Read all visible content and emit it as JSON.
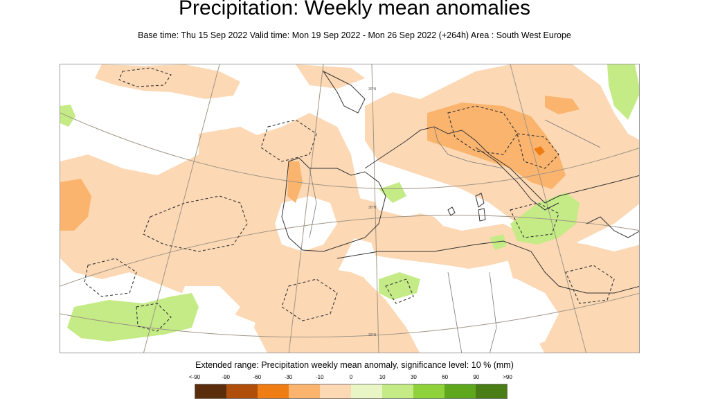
{
  "header": {
    "title": "Precipitation: Weekly mean anomalies",
    "subtitle": "Base time: Thu 15 Sep 2022 Valid time: Mon 19 Sep 2022 - Mon 26 Sep 2022 (+264h) Area : South West Europe"
  },
  "map": {
    "meridian_labels": [
      "30°N",
      "30°N",
      "30°N"
    ]
  },
  "legend": {
    "title": "Extended range: Precipitation weekly mean anomaly, significance level: 10 % (mm)",
    "labels": [
      "<-90",
      "-90",
      "-60",
      "-30",
      "-10",
      "0",
      "10",
      "30",
      "60",
      "90",
      ">90"
    ],
    "colors": [
      "#5a2d0c",
      "#b04e0c",
      "#f07d14",
      "#fab46e",
      "#fcd8b4",
      "#eaf5c6",
      "#c4eb86",
      "#8fd23c",
      "#5fa81e",
      "#4a7d16"
    ]
  }
}
